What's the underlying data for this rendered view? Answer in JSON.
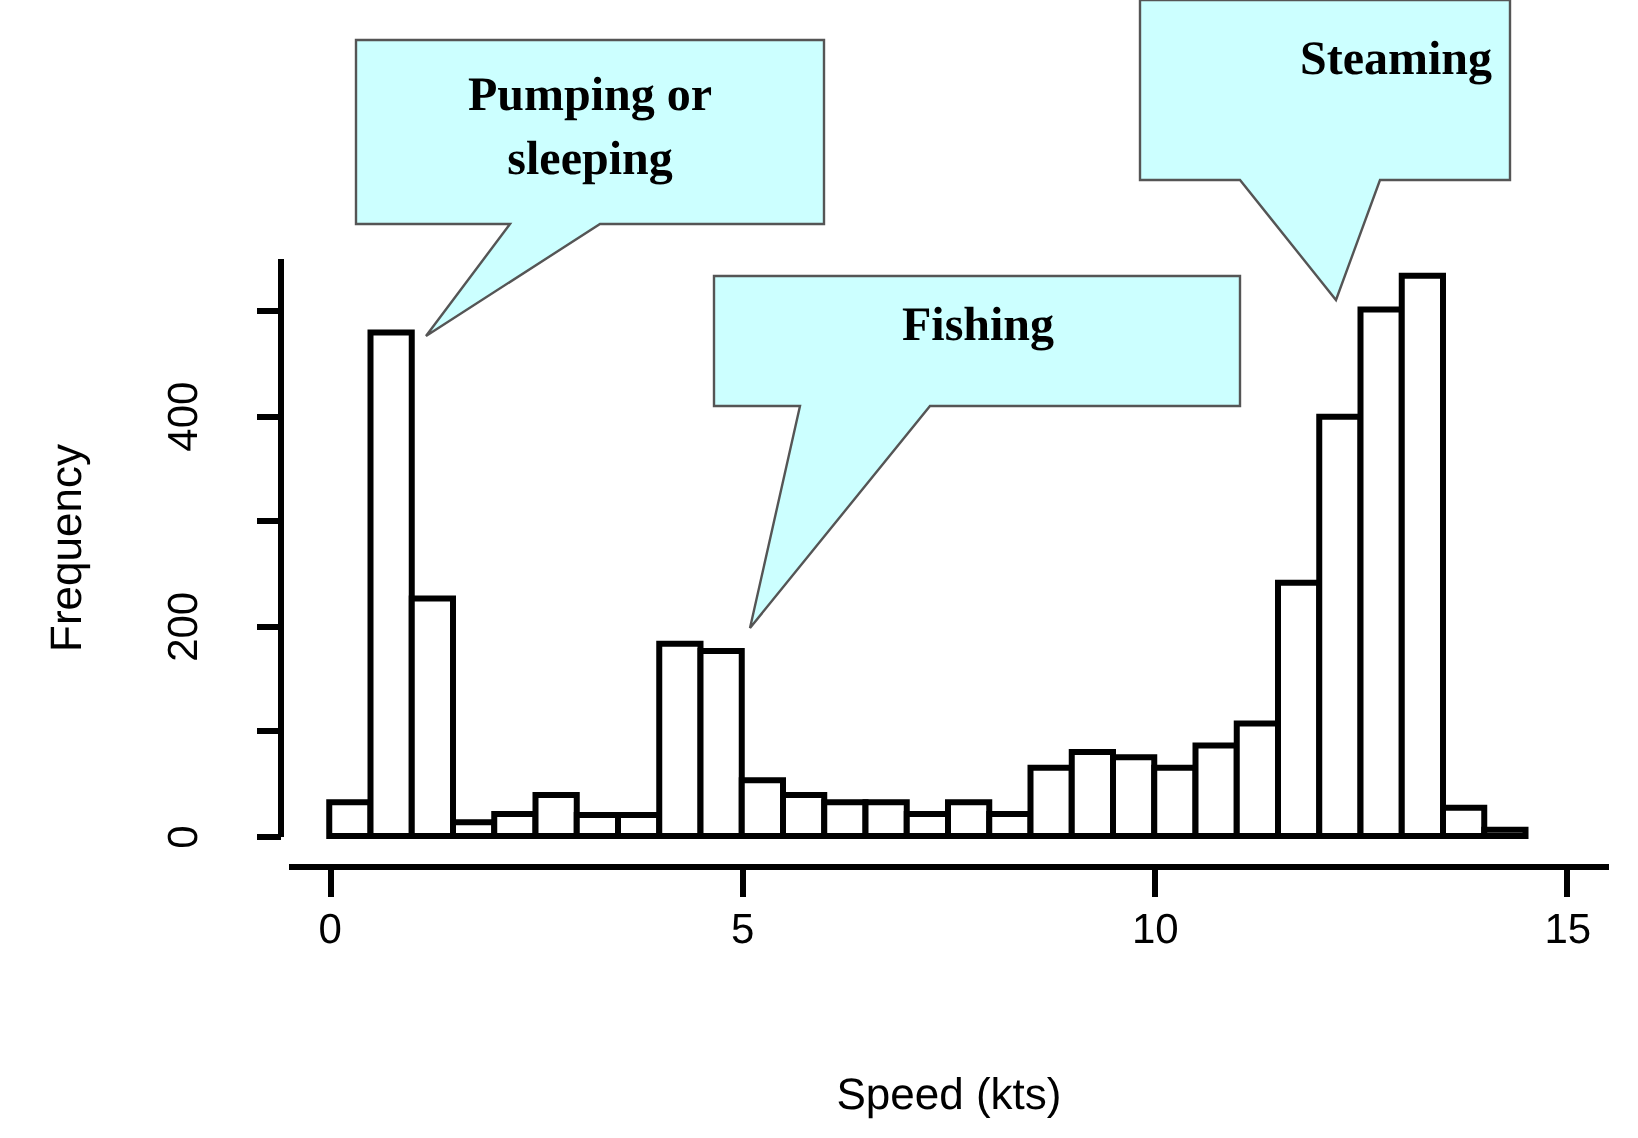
{
  "chart_data": {
    "type": "histogram",
    "xlabel": "Speed (kts)",
    "ylabel": "Frequency",
    "color": "#ffffff",
    "bins": [
      0,
      0.5,
      1,
      1.5,
      2,
      2.5,
      3,
      3.5,
      4,
      4.5,
      5,
      5.5,
      6,
      6.5,
      7,
      7.5,
      8,
      8.5,
      9,
      9.5,
      10,
      10.5,
      11,
      11.5,
      12,
      12.5,
      13,
      13.5,
      14,
      14.5
    ],
    "values": [
      32,
      479,
      226,
      13,
      21,
      39,
      20,
      20,
      183,
      176,
      53,
      39,
      32,
      32,
      21,
      32,
      21,
      65,
      80,
      75,
      65,
      86,
      107,
      241,
      399,
      501,
      533,
      27,
      6
    ],
    "xlim": [
      -0.5,
      15.5
    ],
    "xticks": [
      0,
      5,
      10,
      15
    ],
    "ylim": [
      0,
      550
    ],
    "yticks": [
      0,
      {
        "value": 100,
        "label": null
      },
      200,
      {
        "value": 300,
        "label": null
      },
      400,
      {
        "value": 500,
        "label": null
      }
    ],
    "grid": false,
    "annotations": [
      "Pumping or sleeping",
      "Fishing",
      "Steaming"
    ]
  }
}
